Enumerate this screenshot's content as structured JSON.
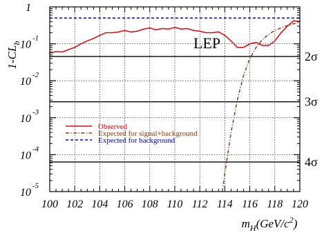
{
  "chart_data": {
    "type": "line",
    "title": "LEP",
    "ylabel": "1-CL_b",
    "xlabel": "m_H(GeV/c^2)",
    "xlim": [
      100,
      120
    ],
    "ylim": [
      1e-05,
      1
    ],
    "yscale": "log",
    "grid": true,
    "legend_placement": "center-left",
    "x_ticks": [
      "100",
      "102",
      "104",
      "106",
      "108",
      "110",
      "112",
      "114",
      "116",
      "118",
      "120"
    ],
    "y_ticks": [
      {
        "base": "10",
        "exp": "-5",
        "value": 1e-05
      },
      {
        "base": "10",
        "exp": "-4",
        "value": 0.0001
      },
      {
        "base": "10",
        "exp": "-3",
        "value": 0.001
      },
      {
        "base": "10",
        "exp": "-2",
        "value": 0.01
      },
      {
        "base": "10",
        "exp": "-1",
        "value": 0.1
      },
      {
        "base": "1",
        "exp": "",
        "value": 1
      }
    ],
    "sigma_lines": [
      {
        "label": "2σ",
        "value": 0.0455
      },
      {
        "label": "3σ",
        "value": 0.0027
      },
      {
        "label": "4σ",
        "value": 6.33e-05
      }
    ],
    "series": [
      {
        "name": "Observed",
        "color": "#e8000b",
        "style": "solid",
        "x": [
          100,
          100.5,
          101,
          101.5,
          102,
          102.5,
          103,
          103.5,
          104,
          104.5,
          105,
          105.5,
          106,
          106.5,
          107,
          107.5,
          108,
          108.5,
          109,
          109.5,
          110,
          110.5,
          111,
          111.5,
          112,
          112.5,
          113,
          113.5,
          114,
          114.5,
          115,
          115.5,
          116,
          116.5,
          117,
          117.5,
          118,
          118.5,
          119,
          119.5,
          120
        ],
        "y": [
          0.056,
          0.062,
          0.06,
          0.07,
          0.08,
          0.1,
          0.12,
          0.14,
          0.17,
          0.2,
          0.2,
          0.21,
          0.23,
          0.21,
          0.22,
          0.25,
          0.27,
          0.24,
          0.26,
          0.25,
          0.28,
          0.25,
          0.26,
          0.23,
          0.22,
          0.2,
          0.2,
          0.21,
          0.17,
          0.12,
          0.08,
          0.08,
          0.1,
          0.11,
          0.09,
          0.09,
          0.12,
          0.2,
          0.3,
          0.42,
          0.4
        ]
      },
      {
        "name": "Expected for signal+background",
        "color": "#8b3a0f",
        "style": "dashdot",
        "x": [
          113.8,
          114,
          114.5,
          115,
          115.5,
          116,
          116.5,
          117,
          117.5,
          118,
          118.5,
          119,
          119.5,
          120
        ],
        "y": [
          1e-05,
          3e-05,
          0.0004,
          0.003,
          0.014,
          0.04,
          0.08,
          0.13,
          0.18,
          0.23,
          0.27,
          0.31,
          0.35,
          0.38
        ]
      },
      {
        "name": "Expected for background",
        "color": "#0000e0",
        "style": "dashed",
        "x": [
          100,
          120
        ],
        "y": [
          0.5,
          0.5
        ]
      }
    ]
  }
}
